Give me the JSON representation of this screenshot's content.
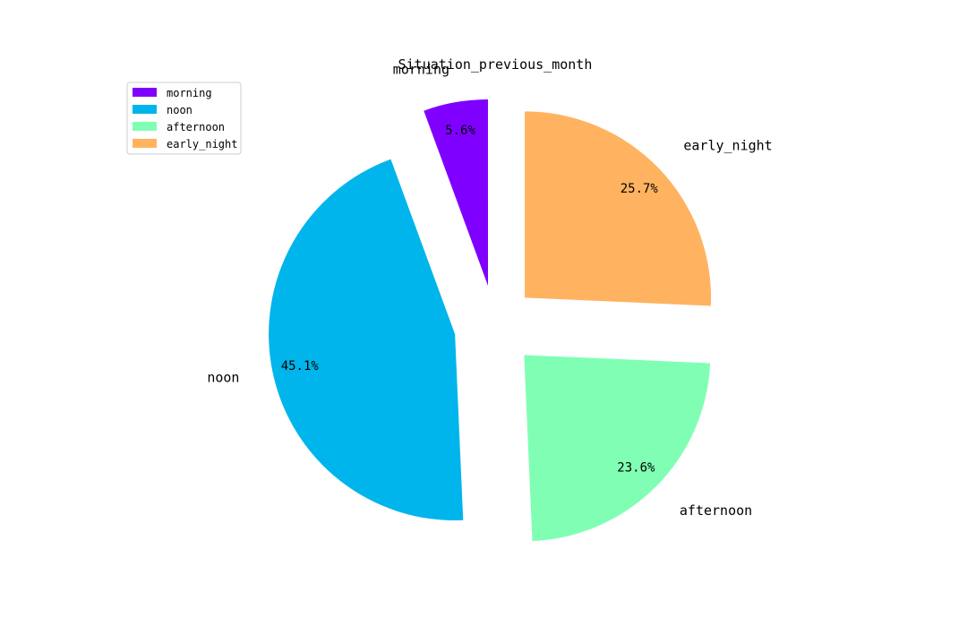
{
  "chart_data": {
    "type": "pie",
    "title": "Situation_previous_month",
    "slices": [
      {
        "label": "morning",
        "value": 5.6,
        "pct_label": "5.6%",
        "color": "#8000ff"
      },
      {
        "label": "noon",
        "value": 45.1,
        "pct_label": "45.1%",
        "color": "#00b5eb"
      },
      {
        "label": "afternoon",
        "value": 23.6,
        "pct_label": "23.6%",
        "color": "#80ffb4"
      },
      {
        "label": "early_night",
        "value": 25.7,
        "pct_label": "25.7%",
        "color": "#ffb360"
      }
    ],
    "start_angle": "top",
    "direction": "counterclockwise",
    "exploded": true,
    "legend": {
      "position": "top-left",
      "entries": [
        "morning",
        "noon",
        "afternoon",
        "early_night"
      ]
    }
  }
}
